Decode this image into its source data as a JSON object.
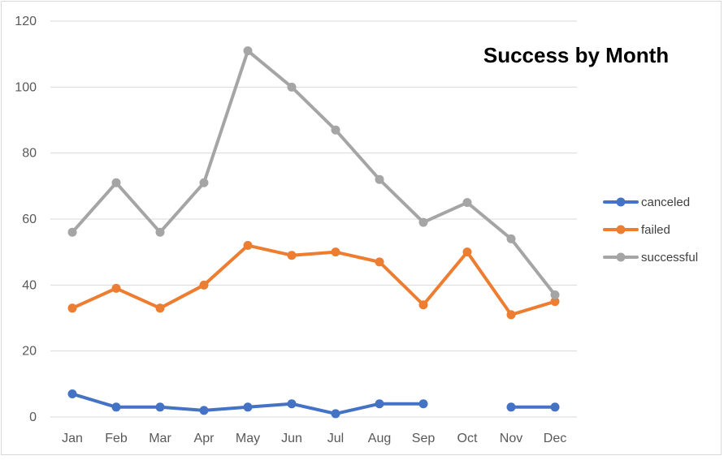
{
  "chart_data": {
    "type": "line",
    "title": "Success by Month",
    "xlabel": "",
    "ylabel": "",
    "categories": [
      "Jan",
      "Feb",
      "Mar",
      "Apr",
      "May",
      "Jun",
      "Jul",
      "Aug",
      "Sep",
      "Oct",
      "Nov",
      "Dec"
    ],
    "ylim": [
      0,
      120
    ],
    "yticks": [
      0,
      20,
      40,
      60,
      80,
      100,
      120
    ],
    "grid": true,
    "legend_position": "right",
    "series": [
      {
        "name": "canceled",
        "color": "#4472c4",
        "values": [
          7,
          3,
          3,
          2,
          3,
          4,
          1,
          4,
          4,
          null,
          3,
          3
        ]
      },
      {
        "name": "failed",
        "color": "#ed7d31",
        "values": [
          33,
          39,
          33,
          40,
          52,
          49,
          50,
          47,
          34,
          50,
          31,
          35
        ]
      },
      {
        "name": "successful",
        "color": "#a5a5a5",
        "values": [
          56,
          71,
          56,
          71,
          111,
          100,
          87,
          72,
          59,
          65,
          54,
          37
        ]
      }
    ]
  }
}
